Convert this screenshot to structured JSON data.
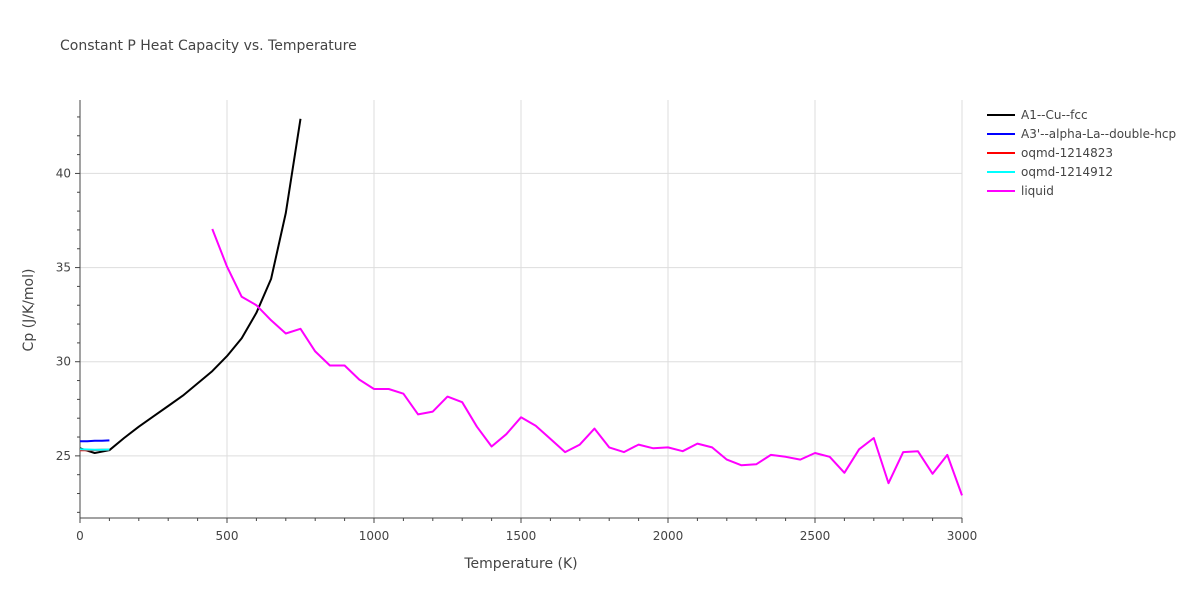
{
  "chart_data": {
    "type": "line",
    "title": "Constant P Heat Capacity vs. Temperature",
    "xlabel": "Temperature (K)",
    "ylabel": "Cp (J/K/mol)",
    "xlim": [
      0,
      3000
    ],
    "ylim": [
      21.7,
      43.9
    ],
    "xticks": [
      0,
      500,
      1000,
      1500,
      2000,
      2500,
      3000
    ],
    "xtick_labels": [
      "0",
      "500",
      "1000",
      "1500",
      "2000",
      "2500",
      "3000"
    ],
    "yticks": [
      25,
      30,
      35,
      40
    ],
    "ytick_labels": [
      "25",
      "30",
      "35",
      "40"
    ],
    "series": [
      {
        "name": "A1--Cu--fcc",
        "color": "#000000",
        "x": [
          0,
          50,
          100,
          150,
          200,
          250,
          300,
          350,
          400,
          450,
          500,
          550,
          600,
          650,
          700,
          750
        ],
        "y": [
          25.4,
          25.15,
          25.3,
          25.95,
          26.55,
          27.1,
          27.65,
          28.2,
          28.85,
          29.5,
          30.3,
          31.25,
          32.6,
          34.4,
          37.9,
          42.9
        ]
      },
      {
        "name": "A3'--alpha-La--double-hcp",
        "color": "#0000ff",
        "x": [
          0,
          25,
          50,
          75,
          100
        ],
        "y": [
          25.78,
          25.78,
          25.8,
          25.8,
          25.82
        ]
      },
      {
        "name": "oqmd-1214823",
        "color": "#ff0000",
        "x": [
          0,
          25,
          50,
          75,
          100
        ],
        "y": [
          25.3,
          25.3,
          25.31,
          25.32,
          25.33
        ]
      },
      {
        "name": "oqmd-1214912",
        "color": "#00ffff",
        "x": [
          0,
          25,
          50,
          75,
          100
        ],
        "y": [
          25.35,
          25.34,
          25.33,
          25.33,
          25.34
        ]
      },
      {
        "name": "liquid",
        "color": "#ff00ff",
        "x": [
          450,
          500,
          550,
          600,
          650,
          700,
          750,
          800,
          850,
          900,
          950,
          1000,
          1050,
          1100,
          1150,
          1200,
          1250,
          1300,
          1350,
          1400,
          1450,
          1500,
          1550,
          1600,
          1650,
          1700,
          1750,
          1800,
          1850,
          1900,
          1950,
          2000,
          2050,
          2100,
          2150,
          2200,
          2250,
          2300,
          2350,
          2400,
          2450,
          2500,
          2550,
          2600,
          2650,
          2700,
          2750,
          2800,
          2850,
          2900,
          2950,
          3000
        ],
        "y": [
          37.05,
          35.05,
          33.45,
          33.0,
          32.2,
          31.5,
          31.75,
          30.55,
          29.8,
          29.8,
          29.05,
          28.55,
          28.55,
          28.3,
          27.2,
          27.35,
          28.15,
          27.85,
          26.55,
          25.5,
          26.15,
          27.05,
          26.6,
          25.9,
          25.2,
          25.6,
          26.45,
          25.45,
          25.2,
          25.6,
          25.4,
          25.45,
          25.25,
          25.65,
          25.45,
          24.8,
          24.5,
          24.55,
          25.05,
          24.95,
          24.8,
          25.15,
          24.95,
          24.1,
          25.35,
          25.95,
          23.55,
          25.2,
          25.25,
          24.05,
          25.05,
          22.9
        ]
      }
    ],
    "legend_position": "right"
  }
}
